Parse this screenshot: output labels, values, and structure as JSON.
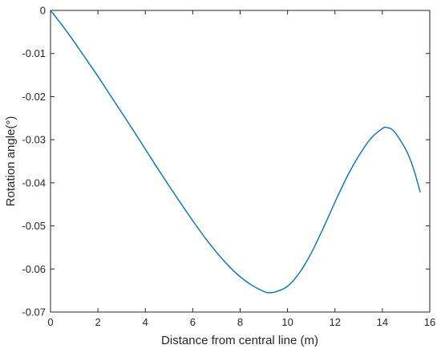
{
  "chart_data": {
    "type": "line",
    "title": "",
    "xlabel": "Distance from central line (m)",
    "ylabel": "Rotation angle(°)",
    "xlim": [
      0,
      16
    ],
    "ylim": [
      -0.07,
      0
    ],
    "xticks": [
      0,
      2,
      4,
      6,
      8,
      10,
      12,
      14,
      16
    ],
    "yticks": [
      0,
      -0.01,
      -0.02,
      -0.03,
      -0.04,
      -0.05,
      -0.06,
      -0.07
    ],
    "xtick_labels": [
      "0",
      "2",
      "4",
      "6",
      "8",
      "10",
      "12",
      "14",
      "16"
    ],
    "ytick_labels": [
      "0",
      "-0.01",
      "-0.02",
      "-0.03",
      "-0.04",
      "-0.05",
      "-0.06",
      "-0.07"
    ],
    "grid": false,
    "series": [
      {
        "color": "#0072bd",
        "x": [
          0,
          0.5,
          1,
          1.5,
          2,
          2.5,
          3,
          3.5,
          4,
          4.5,
          5,
          5.5,
          6,
          6.5,
          7,
          7.5,
          8,
          8.5,
          9,
          9.2,
          9.5,
          10,
          10.5,
          11,
          11.5,
          12,
          12.5,
          13,
          13.5,
          14,
          14.2,
          14.5,
          15,
          15.3,
          15.6
        ],
        "y": [
          0,
          -0.0035,
          -0.0073,
          -0.0113,
          -0.0153,
          -0.0195,
          -0.0237,
          -0.0279,
          -0.0322,
          -0.0365,
          -0.0407,
          -0.0448,
          -0.0488,
          -0.0526,
          -0.0561,
          -0.0592,
          -0.0618,
          -0.0638,
          -0.0652,
          -0.0655,
          -0.0653,
          -0.064,
          -0.0609,
          -0.0563,
          -0.0506,
          -0.0445,
          -0.0387,
          -0.0338,
          -0.0298,
          -0.0274,
          -0.0272,
          -0.0281,
          -0.0324,
          -0.0365,
          -0.0422
        ]
      }
    ]
  }
}
